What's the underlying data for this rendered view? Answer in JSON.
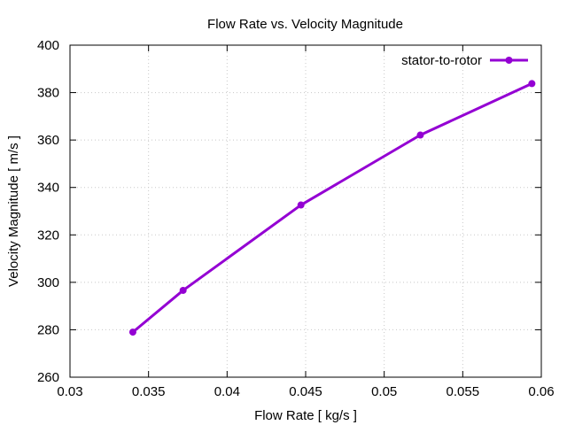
{
  "chart_data": {
    "type": "line",
    "title": "Flow Rate vs. Velocity Magnitude",
    "xlabel": "Flow Rate [ kg/s ]",
    "ylabel": "Velocity Magnitude [ m/s ]",
    "xlim": [
      0.03,
      0.06
    ],
    "ylim": [
      260,
      400
    ],
    "xticks": [
      0.03,
      0.035,
      0.04,
      0.045,
      0.05,
      0.055,
      0.06
    ],
    "xtick_labels": [
      "0.03",
      "0.035",
      "0.04",
      "0.045",
      "0.05",
      "0.055",
      "0.06"
    ],
    "yticks": [
      260,
      280,
      300,
      320,
      340,
      360,
      380,
      400
    ],
    "ytick_labels": [
      "260",
      "280",
      "300",
      "320",
      "340",
      "360",
      "380",
      "400"
    ],
    "grid": true,
    "legend_position": "top-right",
    "series": [
      {
        "name": "stator-to-rotor",
        "color": "#9400d3",
        "marker": "circle",
        "x": [
          0.034,
          0.0372,
          0.0447,
          0.0523,
          0.0594
        ],
        "y": [
          279.0,
          296.6,
          332.6,
          362.1,
          383.8
        ]
      }
    ]
  }
}
